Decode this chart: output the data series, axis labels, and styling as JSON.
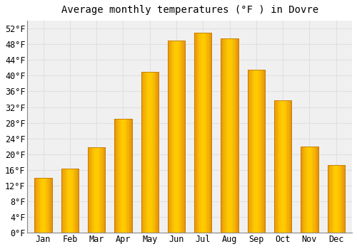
{
  "title": "Average monthly temperatures (°F ) in Dovre",
  "months": [
    "Jan",
    "Feb",
    "Mar",
    "Apr",
    "May",
    "Jun",
    "Jul",
    "Aug",
    "Sep",
    "Oct",
    "Nov",
    "Dec"
  ],
  "values": [
    14.0,
    16.3,
    21.8,
    29.0,
    41.0,
    49.0,
    51.0,
    49.5,
    41.5,
    33.8,
    21.9,
    17.2
  ],
  "bar_color_dark": "#E8960A",
  "bar_color_mid": "#F5A800",
  "bar_color_light": "#FFCC00",
  "bar_edge_color": "#C47800",
  "background_color": "#ffffff",
  "plot_bg_color": "#f0f0f0",
  "grid_color": "#e0e0e0",
  "yticks": [
    0,
    4,
    8,
    12,
    16,
    20,
    24,
    28,
    32,
    36,
    40,
    44,
    48,
    52
  ],
  "ylim": [
    0,
    54
  ],
  "title_fontsize": 10,
  "tick_fontsize": 8.5,
  "font_family": "monospace"
}
